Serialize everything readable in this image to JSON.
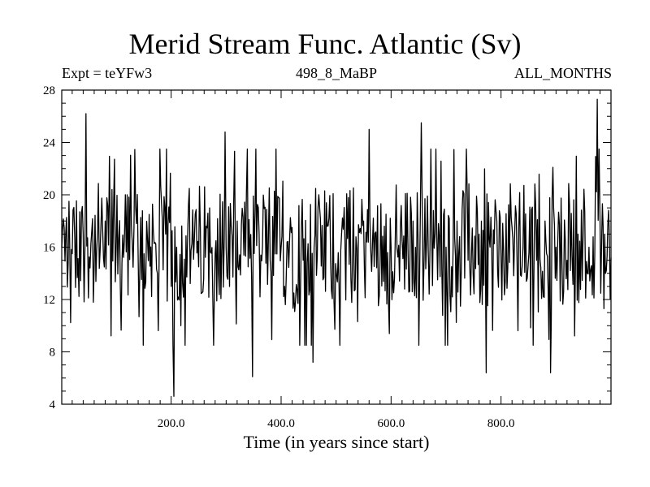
{
  "chart_data": {
    "type": "line",
    "title": "Merid Stream Func. Atlantic (Sv)",
    "subtitle_left": "Expt = teYFw3",
    "subtitle_center": "498_8_MaBP",
    "subtitle_right": "ALL_MONTHS",
    "xlabel": "Time (in years since start)",
    "ylabel": "",
    "xlim": [
      1,
      1000
    ],
    "ylim": [
      4,
      28
    ],
    "xticks_major": [
      200,
      400,
      600,
      800
    ],
    "xtick_labels": [
      "200.0",
      "400.0",
      "600.0",
      "800.0"
    ],
    "yticks_major": [
      4,
      8,
      12,
      16,
      20,
      24,
      28
    ],
    "ytick_labels": [
      "4",
      "8",
      "12",
      "16",
      "20",
      "24",
      "28"
    ],
    "grid": false,
    "series": [
      {
        "color": "#000000",
        "x": [
          1,
          20,
          40,
          45,
          60,
          80,
          100,
          115,
          120,
          140,
          160,
          175,
          190,
          200,
          205,
          210,
          230,
          250,
          270,
          280,
          298,
          300,
          320,
          340,
          348,
          360,
          380,
          400,
          420,
          440,
          458,
          460,
          470,
          490,
          510,
          530,
          550,
          560,
          580,
          600,
          620,
          640,
          655,
          660,
          680,
          700,
          710,
          720,
          740,
          760,
          773,
          780,
          800,
          820,
          840,
          860,
          880,
          890,
          900,
          920,
          940,
          960,
          975,
          980,
          990,
          1000
        ],
        "y": [
          16,
          15.5,
          17,
          26.2,
          14.5,
          18,
          16,
          16.5,
          20,
          15,
          18.5,
          14,
          17,
          13,
          4.6,
          16,
          17,
          14.5,
          19,
          15.5,
          24.8,
          16,
          18,
          14.5,
          6.1,
          17,
          15,
          16,
          17.5,
          15,
          7.2,
          16,
          19,
          15,
          17,
          15.5,
          18,
          25,
          15,
          16,
          16.5,
          18,
          25.5,
          15,
          17,
          16,
          14.5,
          18,
          15,
          17,
          6.4,
          16,
          15,
          17.5,
          16,
          15,
          18,
          6.4,
          16,
          15,
          17,
          16,
          27.3,
          18,
          14,
          15.2
        ]
      }
    ]
  }
}
